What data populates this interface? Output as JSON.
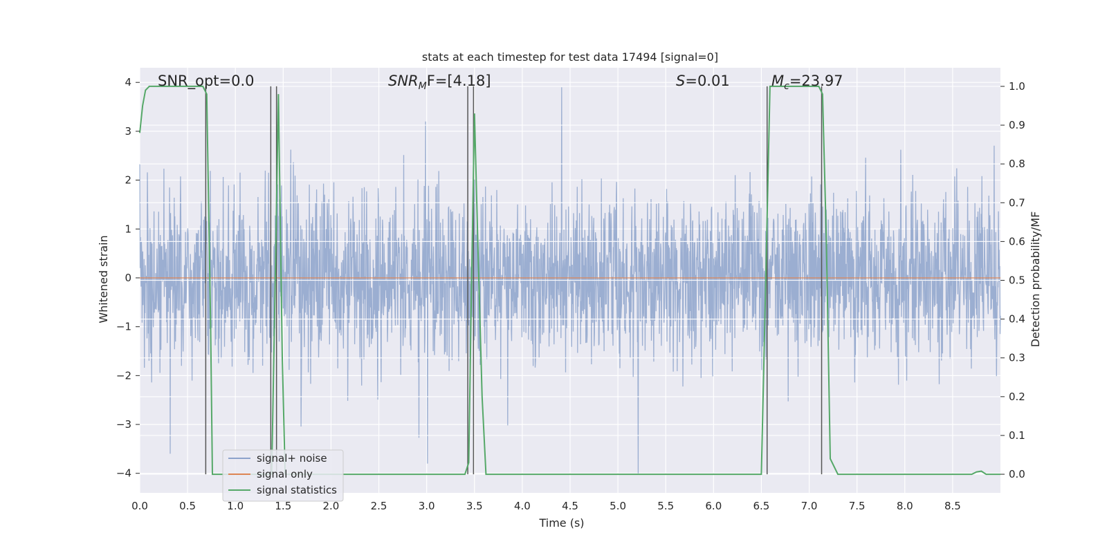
{
  "chart_data": {
    "type": "line",
    "title": "stats at each timestep for test data 17494 [signal=0]",
    "xlabel": "Time (s)",
    "ylabel": "Whitened strain",
    "ylabel_right": "Detection probability/MF",
    "xlim": [
      0.0,
      9.0
    ],
    "ylim": [
      -4.4,
      4.3
    ],
    "ylim_right": [
      -0.048,
      1.048
    ],
    "x_ticks": [
      0.0,
      0.5,
      1.0,
      1.5,
      2.0,
      2.5,
      3.0,
      3.5,
      4.0,
      4.5,
      5.0,
      5.5,
      6.0,
      6.5,
      7.0,
      7.5,
      8.0,
      8.5
    ],
    "x_tick_labels": [
      "0.0",
      "0.5",
      "1.0",
      "1.5",
      "2.0",
      "2.5",
      "3.0",
      "3.5",
      "4.0",
      "4.5",
      "5.0",
      "5.5",
      "6.0",
      "6.5",
      "7.0",
      "7.5",
      "8.0",
      "8.5"
    ],
    "y_ticks": [
      -4,
      -3,
      -2,
      -1,
      0,
      1,
      2,
      3,
      4
    ],
    "y_tick_labels": [
      "−4",
      "−3",
      "−2",
      "−1",
      "0",
      "1",
      "2",
      "3",
      "4"
    ],
    "y_right_ticks": [
      0.0,
      0.1,
      0.2,
      0.3,
      0.4,
      0.5,
      0.6,
      0.7,
      0.8,
      0.9,
      1.0
    ],
    "y_right_tick_labels": [
      "0.0",
      "0.1",
      "0.2",
      "0.3",
      "0.4",
      "0.5",
      "0.6",
      "0.7",
      "0.8",
      "0.9",
      "1.0"
    ],
    "grid": true,
    "legend_position": "bottom-left",
    "annotations": {
      "snr_opt": "SNR_opt=0.0",
      "snr_mf": "F=[4.18]",
      "snr_mf_prefix": "SNR",
      "snr_mf_sub": "M",
      "s_value": "=0.01",
      "s_prefix": "S",
      "mc_value": "=23.97",
      "mc_prefix": "M",
      "mc_sub": "c"
    },
    "series": [
      {
        "name": "signal+ noise",
        "color": "#4c72b0",
        "axis": "left",
        "style": "noise",
        "approx_std": 0.85,
        "approx_range": [
          -4.0,
          3.9
        ],
        "notable_spikes": [
          {
            "x": 0.32,
            "y": -3.6
          },
          {
            "x": 2.99,
            "y": 3.2
          },
          {
            "x": 3.01,
            "y": -3.8
          },
          {
            "x": 4.41,
            "y": 3.9
          },
          {
            "x": 5.21,
            "y": -4.0
          }
        ]
      },
      {
        "name": "signal only",
        "color": "#dd8452",
        "axis": "left",
        "x": [
          0.0,
          9.0
        ],
        "y": [
          0.0,
          0.0
        ]
      },
      {
        "name": "signal statistics",
        "color": "#55a868",
        "axis": "right",
        "x": [
          0.0,
          0.03,
          0.06,
          0.1,
          0.2,
          0.4,
          0.6,
          0.66,
          0.7,
          0.74,
          0.76,
          0.8,
          0.9,
          1.0,
          1.1,
          1.2,
          1.3,
          1.38,
          1.42,
          1.45,
          1.49,
          1.52,
          1.6,
          2.0,
          2.5,
          3.0,
          3.4,
          3.44,
          3.47,
          3.5,
          3.54,
          3.58,
          3.62,
          3.7,
          4.0,
          5.0,
          6.0,
          6.5,
          6.55,
          6.59,
          6.65,
          7.0,
          7.1,
          7.14,
          7.18,
          7.22,
          7.3,
          7.5,
          8.0,
          8.5,
          8.7,
          8.75,
          8.8,
          8.85,
          8.9,
          9.0
        ],
        "y": [
          0.88,
          0.95,
          0.99,
          1.0,
          1.0,
          1.0,
          1.0,
          1.0,
          0.98,
          0.4,
          0.0,
          0.0,
          0.0,
          0.0,
          0.0,
          0.0,
          0.0,
          0.0,
          0.55,
          0.98,
          0.3,
          0.0,
          0.0,
          0.0,
          0.0,
          0.0,
          0.0,
          0.03,
          0.5,
          0.93,
          0.55,
          0.2,
          0.0,
          0.0,
          0.0,
          0.0,
          0.0,
          0.0,
          0.55,
          1.0,
          1.0,
          1.0,
          1.0,
          0.98,
          0.6,
          0.04,
          0.0,
          0.0,
          0.0,
          0.0,
          0.0,
          0.006,
          0.008,
          0.0,
          0.0,
          0.0
        ]
      }
    ],
    "vertical_markers": {
      "color": "#555555",
      "x": [
        0.69,
        1.37,
        1.43,
        3.43,
        3.49,
        6.56,
        7.13
      ],
      "y_top": 1.0,
      "y_bottom": 0.0
    }
  }
}
